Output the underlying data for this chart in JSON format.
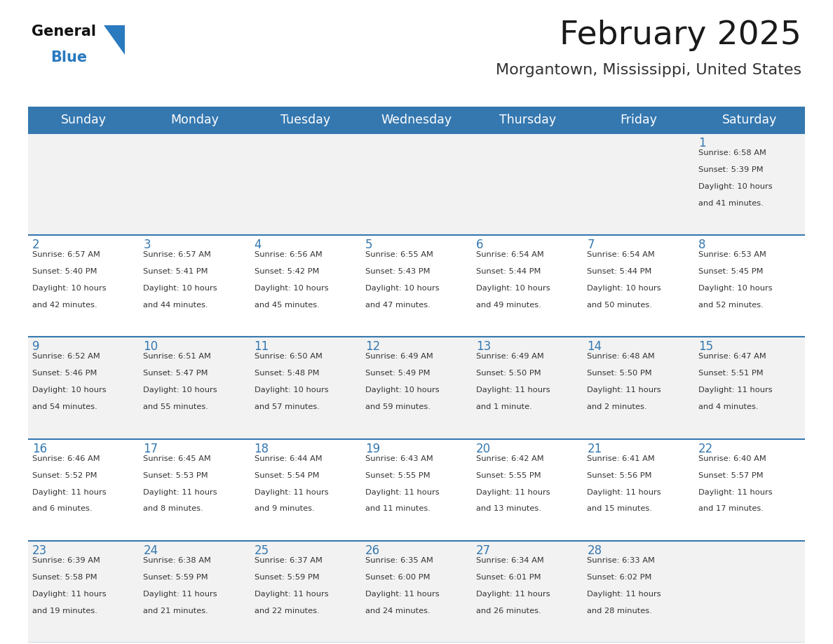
{
  "title": "February 2025",
  "subtitle": "Morgantown, Mississippi, United States",
  "days_of_week": [
    "Sunday",
    "Monday",
    "Tuesday",
    "Wednesday",
    "Thursday",
    "Friday",
    "Saturday"
  ],
  "header_bg": "#3578b0",
  "header_text": "#ffffff",
  "cell_bg_odd": "#f2f2f2",
  "cell_bg_even": "#ffffff",
  "divider_color": "#3578b0",
  "text_color": "#333333",
  "title_color": "#1a1a1a",
  "subtitle_color": "#333333",
  "day_num_color": "#3578b0",
  "logo_black": "#111111",
  "logo_blue": "#2a7abf",
  "calendar_data": [
    [
      {
        "day": null,
        "sunrise": null,
        "sunset": null,
        "daylight_line1": null,
        "daylight_line2": null
      },
      {
        "day": null,
        "sunrise": null,
        "sunset": null,
        "daylight_line1": null,
        "daylight_line2": null
      },
      {
        "day": null,
        "sunrise": null,
        "sunset": null,
        "daylight_line1": null,
        "daylight_line2": null
      },
      {
        "day": null,
        "sunrise": null,
        "sunset": null,
        "daylight_line1": null,
        "daylight_line2": null
      },
      {
        "day": null,
        "sunrise": null,
        "sunset": null,
        "daylight_line1": null,
        "daylight_line2": null
      },
      {
        "day": null,
        "sunrise": null,
        "sunset": null,
        "daylight_line1": null,
        "daylight_line2": null
      },
      {
        "day": 1,
        "sunrise": "6:58 AM",
        "sunset": "5:39 PM",
        "daylight_line1": "Daylight: 10 hours",
        "daylight_line2": "and 41 minutes."
      }
    ],
    [
      {
        "day": 2,
        "sunrise": "6:57 AM",
        "sunset": "5:40 PM",
        "daylight_line1": "Daylight: 10 hours",
        "daylight_line2": "and 42 minutes."
      },
      {
        "day": 3,
        "sunrise": "6:57 AM",
        "sunset": "5:41 PM",
        "daylight_line1": "Daylight: 10 hours",
        "daylight_line2": "and 44 minutes."
      },
      {
        "day": 4,
        "sunrise": "6:56 AM",
        "sunset": "5:42 PM",
        "daylight_line1": "Daylight: 10 hours",
        "daylight_line2": "and 45 minutes."
      },
      {
        "day": 5,
        "sunrise": "6:55 AM",
        "sunset": "5:43 PM",
        "daylight_line1": "Daylight: 10 hours",
        "daylight_line2": "and 47 minutes."
      },
      {
        "day": 6,
        "sunrise": "6:54 AM",
        "sunset": "5:44 PM",
        "daylight_line1": "Daylight: 10 hours",
        "daylight_line2": "and 49 minutes."
      },
      {
        "day": 7,
        "sunrise": "6:54 AM",
        "sunset": "5:44 PM",
        "daylight_line1": "Daylight: 10 hours",
        "daylight_line2": "and 50 minutes."
      },
      {
        "day": 8,
        "sunrise": "6:53 AM",
        "sunset": "5:45 PM",
        "daylight_line1": "Daylight: 10 hours",
        "daylight_line2": "and 52 minutes."
      }
    ],
    [
      {
        "day": 9,
        "sunrise": "6:52 AM",
        "sunset": "5:46 PM",
        "daylight_line1": "Daylight: 10 hours",
        "daylight_line2": "and 54 minutes."
      },
      {
        "day": 10,
        "sunrise": "6:51 AM",
        "sunset": "5:47 PM",
        "daylight_line1": "Daylight: 10 hours",
        "daylight_line2": "and 55 minutes."
      },
      {
        "day": 11,
        "sunrise": "6:50 AM",
        "sunset": "5:48 PM",
        "daylight_line1": "Daylight: 10 hours",
        "daylight_line2": "and 57 minutes."
      },
      {
        "day": 12,
        "sunrise": "6:49 AM",
        "sunset": "5:49 PM",
        "daylight_line1": "Daylight: 10 hours",
        "daylight_line2": "and 59 minutes."
      },
      {
        "day": 13,
        "sunrise": "6:49 AM",
        "sunset": "5:50 PM",
        "daylight_line1": "Daylight: 11 hours",
        "daylight_line2": "and 1 minute."
      },
      {
        "day": 14,
        "sunrise": "6:48 AM",
        "sunset": "5:50 PM",
        "daylight_line1": "Daylight: 11 hours",
        "daylight_line2": "and 2 minutes."
      },
      {
        "day": 15,
        "sunrise": "6:47 AM",
        "sunset": "5:51 PM",
        "daylight_line1": "Daylight: 11 hours",
        "daylight_line2": "and 4 minutes."
      }
    ],
    [
      {
        "day": 16,
        "sunrise": "6:46 AM",
        "sunset": "5:52 PM",
        "daylight_line1": "Daylight: 11 hours",
        "daylight_line2": "and 6 minutes."
      },
      {
        "day": 17,
        "sunrise": "6:45 AM",
        "sunset": "5:53 PM",
        "daylight_line1": "Daylight: 11 hours",
        "daylight_line2": "and 8 minutes."
      },
      {
        "day": 18,
        "sunrise": "6:44 AM",
        "sunset": "5:54 PM",
        "daylight_line1": "Daylight: 11 hours",
        "daylight_line2": "and 9 minutes."
      },
      {
        "day": 19,
        "sunrise": "6:43 AM",
        "sunset": "5:55 PM",
        "daylight_line1": "Daylight: 11 hours",
        "daylight_line2": "and 11 minutes."
      },
      {
        "day": 20,
        "sunrise": "6:42 AM",
        "sunset": "5:55 PM",
        "daylight_line1": "Daylight: 11 hours",
        "daylight_line2": "and 13 minutes."
      },
      {
        "day": 21,
        "sunrise": "6:41 AM",
        "sunset": "5:56 PM",
        "daylight_line1": "Daylight: 11 hours",
        "daylight_line2": "and 15 minutes."
      },
      {
        "day": 22,
        "sunrise": "6:40 AM",
        "sunset": "5:57 PM",
        "daylight_line1": "Daylight: 11 hours",
        "daylight_line2": "and 17 minutes."
      }
    ],
    [
      {
        "day": 23,
        "sunrise": "6:39 AM",
        "sunset": "5:58 PM",
        "daylight_line1": "Daylight: 11 hours",
        "daylight_line2": "and 19 minutes."
      },
      {
        "day": 24,
        "sunrise": "6:38 AM",
        "sunset": "5:59 PM",
        "daylight_line1": "Daylight: 11 hours",
        "daylight_line2": "and 21 minutes."
      },
      {
        "day": 25,
        "sunrise": "6:37 AM",
        "sunset": "5:59 PM",
        "daylight_line1": "Daylight: 11 hours",
        "daylight_line2": "and 22 minutes."
      },
      {
        "day": 26,
        "sunrise": "6:35 AM",
        "sunset": "6:00 PM",
        "daylight_line1": "Daylight: 11 hours",
        "daylight_line2": "and 24 minutes."
      },
      {
        "day": 27,
        "sunrise": "6:34 AM",
        "sunset": "6:01 PM",
        "daylight_line1": "Daylight: 11 hours",
        "daylight_line2": "and 26 minutes."
      },
      {
        "day": 28,
        "sunrise": "6:33 AM",
        "sunset": "6:02 PM",
        "daylight_line1": "Daylight: 11 hours",
        "daylight_line2": "and 28 minutes."
      },
      {
        "day": null,
        "sunrise": null,
        "sunset": null,
        "daylight_line1": null,
        "daylight_line2": null
      }
    ]
  ]
}
